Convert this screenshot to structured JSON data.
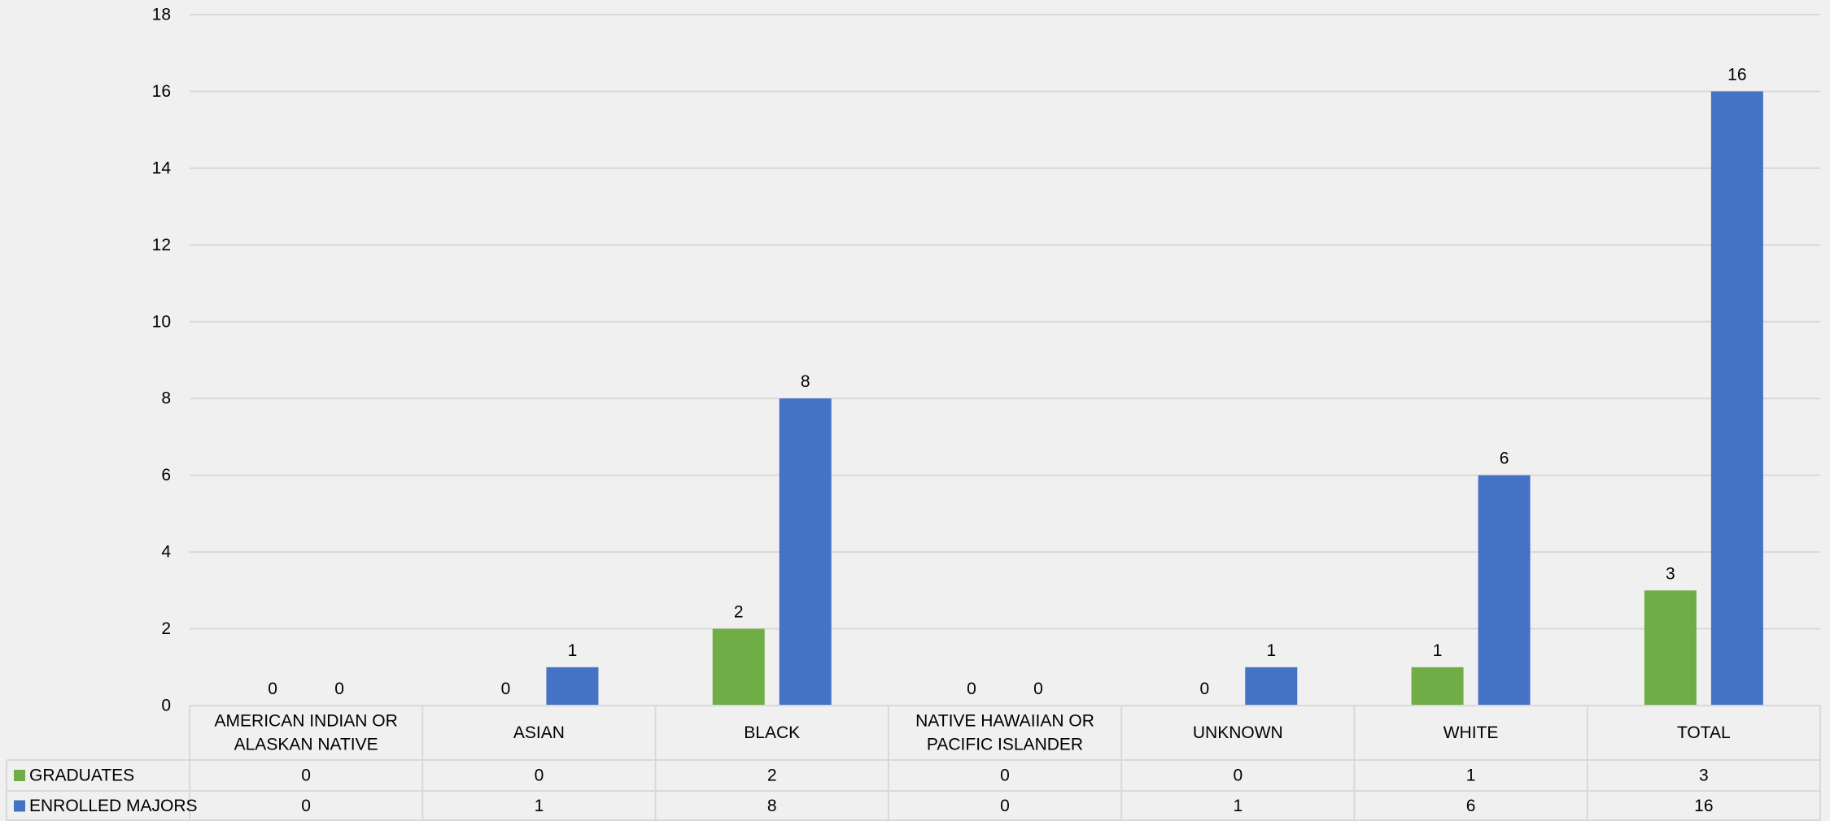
{
  "chart_data": {
    "type": "bar",
    "categories": [
      [
        "AMERICAN INDIAN OR",
        "ALASKAN NATIVE"
      ],
      [
        "ASIAN"
      ],
      [
        "BLACK"
      ],
      [
        "NATIVE HAWAIIAN OR",
        "PACIFIC ISLANDER"
      ],
      [
        "UNKNOWN"
      ],
      [
        "WHITE"
      ],
      [
        "TOTAL"
      ]
    ],
    "series": [
      {
        "name": "GRADUATES",
        "color": "#70ad47",
        "values": [
          0,
          0,
          2,
          0,
          0,
          1,
          3
        ]
      },
      {
        "name": "ENROLLED MAJORS",
        "color": "#4472c4",
        "values": [
          0,
          1,
          8,
          0,
          1,
          6,
          16
        ]
      }
    ],
    "ylim": [
      0,
      18
    ],
    "yticks": [
      0,
      2,
      4,
      6,
      8,
      10,
      12,
      14,
      16,
      18
    ],
    "grid": true,
    "data_table": true,
    "data_labels": true,
    "title": "",
    "xlabel": "",
    "ylabel": ""
  }
}
